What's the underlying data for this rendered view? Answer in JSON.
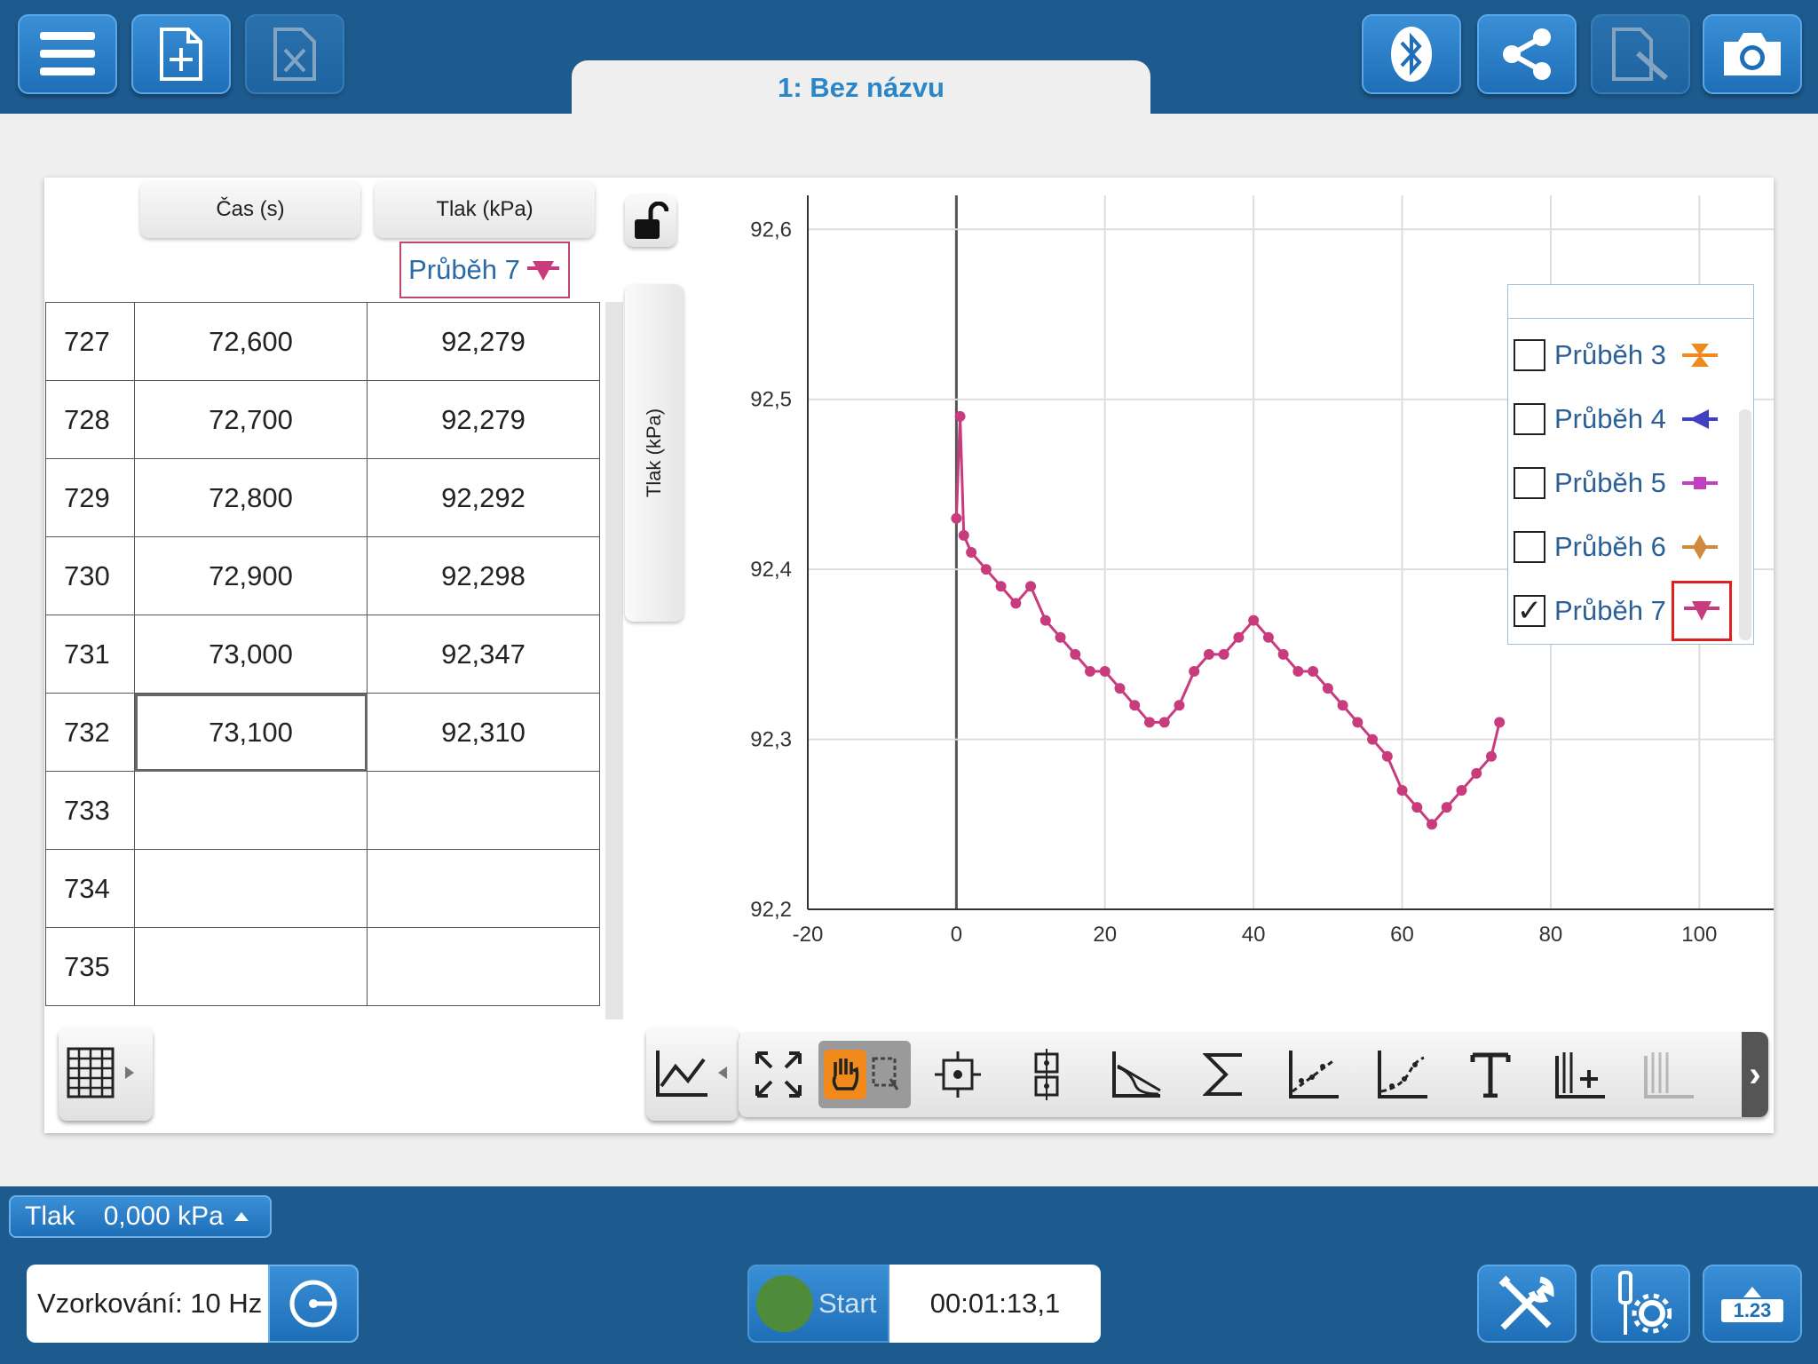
{
  "toolbar": {
    "menu_icon": "hamburger-menu-icon",
    "new_file_icon": "new-file-icon",
    "excel_icon": "spreadsheet-file-icon",
    "bluetooth_icon": "bluetooth-icon",
    "share_icon": "share-icon",
    "edit_icon": "edit-document-icon",
    "camera_icon": "camera-icon"
  },
  "tab": {
    "title": "1: Bez názvu"
  },
  "table": {
    "columns": [
      "Čas (s)",
      "Tlak (kPa)"
    ],
    "run_label": "Průběh 7",
    "rows": [
      {
        "index": "727",
        "time": "72,600",
        "pressure": "92,279"
      },
      {
        "index": "728",
        "time": "72,700",
        "pressure": "92,279"
      },
      {
        "index": "729",
        "time": "72,800",
        "pressure": "92,292"
      },
      {
        "index": "730",
        "time": "72,900",
        "pressure": "92,298"
      },
      {
        "index": "731",
        "time": "73,000",
        "pressure": "92,347"
      },
      {
        "index": "732",
        "time": "73,100",
        "pressure": "92,310"
      },
      {
        "index": "733",
        "time": "",
        "pressure": ""
      },
      {
        "index": "734",
        "time": "",
        "pressure": ""
      },
      {
        "index": "735",
        "time": "",
        "pressure": ""
      }
    ]
  },
  "graph": {
    "y_axis_button": "Tlak (kPa)",
    "lock_icon": "unlocked-padlock-icon"
  },
  "chart_data": {
    "type": "line",
    "xlim": [
      -20,
      110
    ],
    "ylim": [
      92.2,
      92.62
    ],
    "x_ticks": [
      "-20",
      "0",
      "20",
      "40",
      "60",
      "80",
      "100"
    ],
    "y_ticks": [
      "92,2",
      "92,3",
      "92,4",
      "92,5",
      "92,6"
    ],
    "grid": true,
    "series": [
      {
        "name": "Průběh 7",
        "color": "#c83c7e",
        "x": [
          0,
          0.5,
          1,
          2,
          4,
          6,
          8,
          10,
          12,
          14,
          16,
          18,
          20,
          22,
          24,
          26,
          28,
          30,
          32,
          34,
          36,
          38,
          40,
          42,
          44,
          46,
          48,
          50,
          52,
          54,
          56,
          58,
          60,
          62,
          64,
          66,
          68,
          70,
          72,
          73.1
        ],
        "y": [
          92.43,
          92.49,
          92.42,
          92.41,
          92.4,
          92.39,
          92.38,
          92.39,
          92.37,
          92.36,
          92.35,
          92.34,
          92.34,
          92.33,
          92.32,
          92.31,
          92.31,
          92.32,
          92.34,
          92.35,
          92.35,
          92.36,
          92.37,
          92.36,
          92.35,
          92.34,
          92.34,
          92.33,
          92.32,
          92.31,
          92.3,
          92.29,
          92.27,
          92.26,
          92.25,
          92.26,
          92.27,
          92.28,
          92.29,
          92.31
        ]
      }
    ]
  },
  "legend": {
    "items": [
      {
        "label": "Průběh 3",
        "checked": false,
        "color": "#f08a1c",
        "marker": "hourglass"
      },
      {
        "label": "Průběh 4",
        "checked": false,
        "color": "#4040c0",
        "marker": "triangle-left"
      },
      {
        "label": "Průběh 5",
        "checked": false,
        "color": "#c040c0",
        "marker": "square"
      },
      {
        "label": "Průběh 6",
        "checked": false,
        "color": "#d08a40",
        "marker": "diamond"
      },
      {
        "label": "Průběh 7",
        "checked": true,
        "color": "#c83c7e",
        "marker": "triangle-down"
      }
    ]
  },
  "tools": [
    "expand-icon",
    "pan-hand-icon",
    "select-region-icon",
    "examine-icon",
    "interpolate-icon",
    "tangent-icon",
    "sigma-statistics-icon",
    "linear-fit-icon",
    "curve-fit-icon",
    "text-annotation-icon",
    "add-column-icon",
    "remove-column-icon"
  ],
  "sensor": {
    "name": "Tlak",
    "value": "0,000",
    "unit": "kPa"
  },
  "sampling": {
    "label": "Vzorkování: 10 Hz"
  },
  "start": {
    "label": "Start"
  },
  "timer": {
    "value": "00:01:13,1"
  },
  "bottom_icons": [
    "tools-icon",
    "sensor-settings-icon",
    "meter-icon"
  ],
  "meter_label": "1.23"
}
